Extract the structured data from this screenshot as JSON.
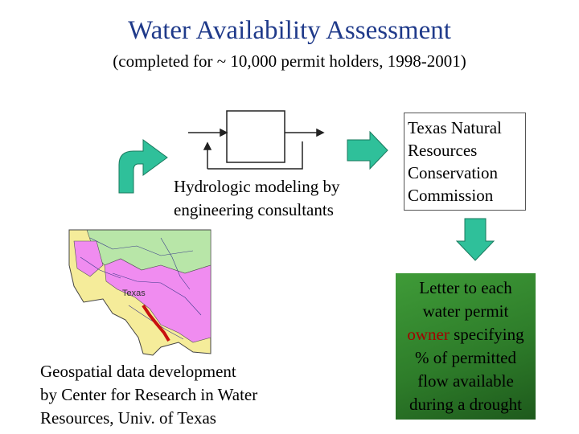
{
  "title": "Water Availability Assessment",
  "subtitle": "(completed for ~ 10,000 permit holders, 1998-2001)",
  "model": {
    "caption_line1": "Hydrologic modeling by",
    "caption_line2": "engineering consultants"
  },
  "tnrcc": {
    "line1": "Texas Natural",
    "line2": "Resources",
    "line3": "Conservation",
    "line4": "Commission"
  },
  "letter": {
    "line1": "Letter to each",
    "line2": "water permit",
    "line3_red": "owner",
    "line3_rest": " specifying",
    "line4": "% of permitted",
    "line5": "flow available",
    "line6": "during a drought"
  },
  "map": {
    "label": "Texas"
  },
  "geo": {
    "caption_line1": "Geospatial data development",
    "caption_line2": "by Center for Research in Water",
    "caption_line3": "Resources, Univ. of Texas"
  },
  "colors": {
    "title": "#1f3a8a",
    "arrow_fill": "#2fc09a",
    "letter_bg": "#2e7d2a",
    "highlight_red": "#a30000",
    "map_pink": "#f08cf0",
    "map_green": "#b8e6a8",
    "map_yellow": "#f5ec9a"
  }
}
